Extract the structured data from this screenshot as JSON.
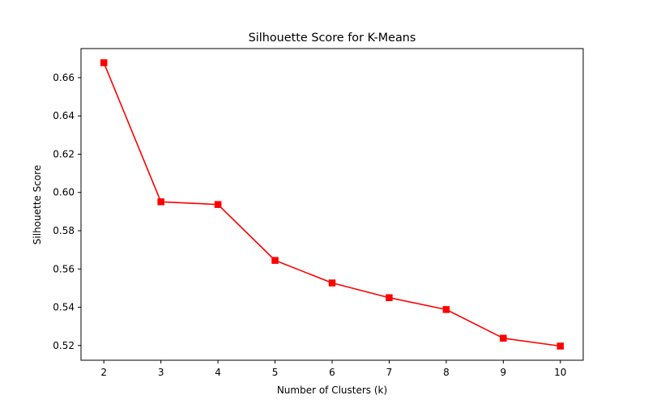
{
  "chart_data": {
    "type": "line",
    "title": "Silhouette Score for K-Means",
    "xlabel": "Number of Clusters (k)",
    "ylabel": "Silhouette Score",
    "x": [
      2,
      3,
      4,
      5,
      6,
      7,
      8,
      9,
      10
    ],
    "series": [
      {
        "values": [
          0.6678,
          0.5951,
          0.5937,
          0.5645,
          0.5527,
          0.545,
          0.5388,
          0.5238,
          0.5197
        ],
        "color": "#ff0000",
        "marker": "square"
      }
    ],
    "xticks": [
      "2",
      "3",
      "4",
      "5",
      "6",
      "7",
      "8",
      "9",
      "10"
    ],
    "yticks": [
      "0.52",
      "0.54",
      "0.56",
      "0.58",
      "0.60",
      "0.62",
      "0.64",
      "0.66"
    ],
    "xlim": [
      1.6,
      10.4
    ],
    "ylim": [
      0.5123,
      0.6752
    ],
    "grid": false
  }
}
